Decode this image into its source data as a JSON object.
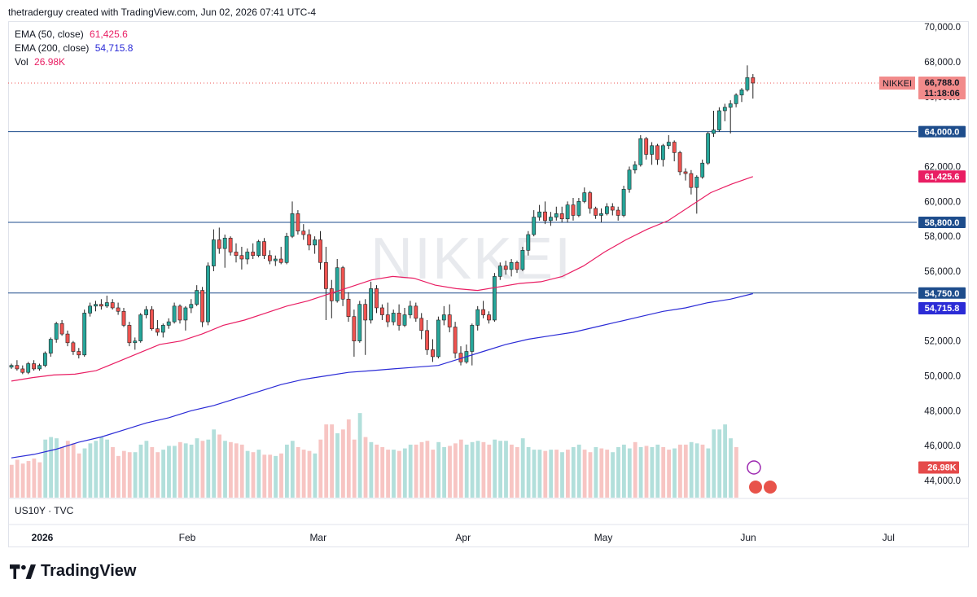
{
  "header": {
    "caption": "thetraderguy created with TradingView.com, Jun 02, 2026 07:41 UTC-4"
  },
  "watermark": "NIKKEI",
  "legend": [
    {
      "label": "EMA (50, close)",
      "value": "61,425.6",
      "color": "#e91e63"
    },
    {
      "label": "EMA (200, close)",
      "value": "54,715.8",
      "color": "#2b2bd6"
    },
    {
      "label": "Vol",
      "value": "26.98K",
      "color": "#e91e63"
    }
  ],
  "sub_series_label": "US10Y · TVC",
  "brand": {
    "name": "TradingView"
  },
  "price_tags": {
    "symbol": "NIKKEI",
    "last_price": "66,788.0",
    "countdown": "11:18:06",
    "ema50": "61,425.6",
    "ema200": "54,715.8",
    "volume": "26.98K"
  },
  "colors": {
    "up": "#26a69a",
    "down": "#ef5350",
    "vol_up": "#b2dfdb",
    "vol_down": "#f7c5c3",
    "ema50": "#e91e63",
    "ema200": "#2b2bd6",
    "hline": "#1e4d8c",
    "last": "#f28b8b"
  },
  "chart_data": {
    "type": "candlestick",
    "symbol": "NIKKEI",
    "interval": "daily",
    "ylim": [
      43500,
      70500
    ],
    "y_ticks": [
      44000,
      46000,
      48000,
      50000,
      52000,
      54000,
      56000,
      58000,
      60000,
      62000,
      64000,
      66000,
      68000,
      70000
    ],
    "y_tick_labels": [
      "44,000.0",
      "46,000.0",
      "48,000.0",
      "50,000.0",
      "52,000.0",
      "54,000.0",
      "56,000.0",
      "58,000.0",
      "60,000.0",
      "62,000.0",
      "64,000.0",
      "66,000.0",
      "68,000.0",
      "70,000.0"
    ],
    "x_labels": [
      {
        "label": "2026",
        "date": "2026-01-01"
      },
      {
        "label": "Feb",
        "date": "2026-02-01"
      },
      {
        "label": "Mar",
        "date": "2026-03-01"
      },
      {
        "label": "Apr",
        "date": "2026-04-01"
      },
      {
        "label": "May",
        "date": "2026-05-01"
      },
      {
        "label": "Jun",
        "date": "2026-06-01"
      },
      {
        "label": "Jul",
        "date": "2026-07-01"
      }
    ],
    "horizontal_lines": [
      {
        "value": 64000,
        "label": "64,000.0"
      },
      {
        "value": 58800,
        "label": "58,800.0"
      },
      {
        "value": 54750,
        "label": "54,750.0"
      }
    ],
    "last_price": 66788,
    "candles": [
      [
        50500,
        50700,
        50400,
        50600
      ],
      [
        50600,
        50900,
        50300,
        50400
      ],
      [
        50400,
        50600,
        50100,
        50200
      ],
      [
        50200,
        50800,
        50100,
        50700
      ],
      [
        50700,
        50900,
        50300,
        50400
      ],
      [
        50400,
        50700,
        50300,
        50600
      ],
      [
        50600,
        51400,
        50500,
        51300
      ],
      [
        51300,
        52200,
        51100,
        52100
      ],
      [
        52100,
        53100,
        51900,
        53000
      ],
      [
        53000,
        53200,
        52300,
        52400
      ],
      [
        52400,
        52600,
        51700,
        51900
      ],
      [
        51900,
        52000,
        51200,
        51400
      ],
      [
        51400,
        51600,
        51000,
        51200
      ],
      [
        51200,
        53800,
        51100,
        53600
      ],
      [
        53600,
        54200,
        53400,
        54000
      ],
      [
        54000,
        54300,
        53700,
        54100
      ],
      [
        54100,
        54400,
        53800,
        54000
      ],
      [
        54000,
        54600,
        53900,
        54200
      ],
      [
        54200,
        54400,
        53800,
        53900
      ],
      [
        53900,
        54200,
        53500,
        53700
      ],
      [
        53700,
        53900,
        52800,
        52900
      ],
      [
        52900,
        53100,
        51700,
        51900
      ],
      [
        51900,
        52200,
        51500,
        52000
      ],
      [
        52000,
        53600,
        51900,
        53500
      ],
      [
        53500,
        54000,
        53300,
        53800
      ],
      [
        53800,
        54000,
        52600,
        52700
      ],
      [
        52700,
        53200,
        52300,
        52500
      ],
      [
        52500,
        53000,
        52200,
        52900
      ],
      [
        52900,
        53300,
        52700,
        53100
      ],
      [
        53100,
        54200,
        53000,
        54000
      ],
      [
        54000,
        54100,
        53000,
        53200
      ],
      [
        53200,
        54000,
        52600,
        53900
      ],
      [
        53900,
        54400,
        53600,
        54100
      ],
      [
        54100,
        55200,
        54000,
        54900
      ],
      [
        54900,
        55100,
        52800,
        53100
      ],
      [
        53100,
        56500,
        52900,
        56300
      ],
      [
        56300,
        58400,
        56000,
        57800
      ],
      [
        57800,
        58500,
        57000,
        57300
      ],
      [
        57300,
        58100,
        56200,
        57900
      ],
      [
        57900,
        58000,
        56900,
        57100
      ],
      [
        57100,
        57600,
        56500,
        56900
      ],
      [
        56900,
        57400,
        56100,
        56700
      ],
      [
        56700,
        57300,
        56400,
        57100
      ],
      [
        57100,
        57600,
        56700,
        56900
      ],
      [
        56900,
        57800,
        56800,
        57700
      ],
      [
        57700,
        57900,
        56700,
        56900
      ],
      [
        56900,
        57200,
        56400,
        56600
      ],
      [
        56600,
        56900,
        56300,
        56700
      ],
      [
        56700,
        57400,
        56400,
        56500
      ],
      [
        56500,
        58200,
        56400,
        58000
      ],
      [
        58000,
        60000,
        57900,
        59300
      ],
      [
        59300,
        59500,
        58100,
        58300
      ],
      [
        58300,
        58700,
        57800,
        58100
      ],
      [
        58100,
        58400,
        57200,
        57500
      ],
      [
        57500,
        58000,
        57000,
        57800
      ],
      [
        57800,
        58300,
        56100,
        56500
      ],
      [
        56500,
        57400,
        53200,
        55000
      ],
      [
        55000,
        55500,
        53300,
        54300
      ],
      [
        54300,
        56700,
        54200,
        56200
      ],
      [
        56200,
        56300,
        54000,
        54400
      ],
      [
        54400,
        54800,
        53100,
        53400
      ],
      [
        53400,
        53800,
        51100,
        52000
      ],
      [
        52000,
        54300,
        51900,
        54100
      ],
      [
        54100,
        54400,
        51200,
        53200
      ],
      [
        53200,
        55400,
        53000,
        55000
      ],
      [
        55000,
        55200,
        53600,
        53900
      ],
      [
        53900,
        54100,
        53200,
        53500
      ],
      [
        53500,
        54200,
        52800,
        53100
      ],
      [
        53100,
        53800,
        52900,
        53600
      ],
      [
        53600,
        54100,
        52600,
        52900
      ],
      [
        52900,
        53900,
        52800,
        53500
      ],
      [
        53500,
        54300,
        53300,
        54000
      ],
      [
        54000,
        54200,
        53100,
        53300
      ],
      [
        53300,
        53600,
        52100,
        52600
      ],
      [
        52600,
        53200,
        51200,
        51500
      ],
      [
        51500,
        52100,
        50800,
        51100
      ],
      [
        51100,
        53400,
        51000,
        53200
      ],
      [
        53200,
        54000,
        52900,
        53500
      ],
      [
        53500,
        54100,
        52500,
        52800
      ],
      [
        52800,
        53100,
        51000,
        51300
      ],
      [
        51300,
        51700,
        50600,
        50800
      ],
      [
        50800,
        51800,
        50700,
        51400
      ],
      [
        51400,
        53000,
        50600,
        52900
      ],
      [
        52900,
        54000,
        52600,
        53800
      ],
      [
        53800,
        54300,
        53300,
        53500
      ],
      [
        53500,
        53700,
        53000,
        53200
      ],
      [
        53200,
        55900,
        53100,
        55700
      ],
      [
        55700,
        56500,
        55500,
        56300
      ],
      [
        56300,
        56600,
        55800,
        56100
      ],
      [
        56100,
        56700,
        55700,
        56500
      ],
      [
        56500,
        56600,
        55900,
        56100
      ],
      [
        56100,
        57400,
        56000,
        57200
      ],
      [
        57200,
        58300,
        56900,
        58100
      ],
      [
        58100,
        59500,
        58000,
        59100
      ],
      [
        59100,
        59800,
        58900,
        59400
      ],
      [
        59400,
        60000,
        58700,
        58900
      ],
      [
        58900,
        59400,
        58600,
        59100
      ],
      [
        59100,
        59700,
        58900,
        59300
      ],
      [
        59300,
        59700,
        58800,
        59000
      ],
      [
        59000,
        60000,
        58800,
        59800
      ],
      [
        59800,
        60200,
        58900,
        59200
      ],
      [
        59200,
        60200,
        59100,
        60000
      ],
      [
        60000,
        60800,
        59900,
        60500
      ],
      [
        60500,
        60600,
        59300,
        59600
      ],
      [
        59600,
        59700,
        59000,
        59200
      ],
      [
        59200,
        59600,
        58800,
        59300
      ],
      [
        59300,
        59900,
        59200,
        59700
      ],
      [
        59700,
        59900,
        59200,
        59500
      ],
      [
        59500,
        59700,
        58900,
        59200
      ],
      [
        59200,
        60900,
        59100,
        60700
      ],
      [
        60700,
        62000,
        60500,
        61800
      ],
      [
        61800,
        62300,
        61600,
        62100
      ],
      [
        62100,
        63800,
        62000,
        63600
      ],
      [
        63600,
        63700,
        62400,
        62700
      ],
      [
        62700,
        63400,
        62100,
        63200
      ],
      [
        63200,
        63300,
        62100,
        62400
      ],
      [
        62400,
        63300,
        62000,
        63200
      ],
      [
        63200,
        63800,
        63000,
        63400
      ],
      [
        63400,
        63500,
        62300,
        62800
      ],
      [
        62800,
        62900,
        61500,
        61700
      ],
      [
        61700,
        61900,
        61200,
        61600
      ],
      [
        61600,
        61800,
        60400,
        60800
      ],
      [
        60800,
        61500,
        59300,
        61400
      ],
      [
        61400,
        62400,
        61300,
        62200
      ],
      [
        62200,
        64000,
        62100,
        63900
      ],
      [
        63900,
        65200,
        63700,
        64100
      ],
      [
        64100,
        65400,
        64000,
        65200
      ],
      [
        65200,
        65600,
        64600,
        65400
      ],
      [
        65400,
        65800,
        63900,
        65600
      ],
      [
        65600,
        66200,
        65400,
        66100
      ],
      [
        66100,
        66500,
        65700,
        66400
      ],
      [
        66400,
        67800,
        66300,
        67100
      ],
      [
        67100,
        67300,
        65900,
        66788
      ]
    ],
    "ema50": [
      49700,
      49900,
      50050,
      50100,
      50300,
      50800,
      51300,
      51800,
      52000,
      52400,
      52900,
      53200,
      53600,
      54000,
      54300,
      54700,
      55100,
      55500,
      55700,
      55600,
      55200,
      55000,
      54900,
      55100,
      55300,
      55400,
      55700,
      56300,
      57100,
      57800,
      58400,
      58900,
      59700,
      60500,
      61000,
      61425.6
    ],
    "ema200": [
      45300,
      45500,
      45800,
      46200,
      46500,
      46900,
      47300,
      47600,
      48000,
      48300,
      48700,
      49100,
      49500,
      49800,
      50000,
      50200,
      50300,
      50400,
      50500,
      50600,
      51000,
      51400,
      51800,
      52100,
      52300,
      52500,
      52800,
      53100,
      53400,
      53700,
      53900,
      54200,
      54400,
      54715.8
    ],
    "volume": [
      [
        26,
        0
      ],
      [
        30,
        0
      ],
      [
        27,
        0
      ],
      [
        29,
        0
      ],
      [
        31,
        0
      ],
      [
        28,
        0
      ],
      [
        46,
        1
      ],
      [
        48,
        1
      ],
      [
        47,
        1
      ],
      [
        40,
        0
      ],
      [
        45,
        0
      ],
      [
        43,
        0
      ],
      [
        35,
        0
      ],
      [
        39,
        1
      ],
      [
        43,
        1
      ],
      [
        45,
        1
      ],
      [
        48,
        1
      ],
      [
        46,
        1
      ],
      [
        40,
        0
      ],
      [
        33,
        0
      ],
      [
        37,
        0
      ],
      [
        36,
        0
      ],
      [
        36,
        1
      ],
      [
        42,
        1
      ],
      [
        45,
        1
      ],
      [
        40,
        0
      ],
      [
        36,
        0
      ],
      [
        38,
        1
      ],
      [
        41,
        1
      ],
      [
        41,
        1
      ],
      [
        44,
        0
      ],
      [
        43,
        1
      ],
      [
        42,
        1
      ],
      [
        47,
        1
      ],
      [
        45,
        0
      ],
      [
        46,
        1
      ],
      [
        54,
        1
      ],
      [
        50,
        0
      ],
      [
        45,
        1
      ],
      [
        44,
        0
      ],
      [
        43,
        0
      ],
      [
        42,
        0
      ],
      [
        37,
        1
      ],
      [
        36,
        0
      ],
      [
        38,
        1
      ],
      [
        34,
        0
      ],
      [
        34,
        0
      ],
      [
        33,
        1
      ],
      [
        35,
        0
      ],
      [
        42,
        1
      ],
      [
        45,
        1
      ],
      [
        40,
        0
      ],
      [
        38,
        0
      ],
      [
        37,
        0
      ],
      [
        35,
        1
      ],
      [
        46,
        0
      ],
      [
        58,
        0
      ],
      [
        58,
        0
      ],
      [
        51,
        1
      ],
      [
        54,
        0
      ],
      [
        62,
        0
      ],
      [
        46,
        0
      ],
      [
        67,
        1
      ],
      [
        48,
        0
      ],
      [
        44,
        1
      ],
      [
        42,
        0
      ],
      [
        40,
        0
      ],
      [
        38,
        0
      ],
      [
        38,
        1
      ],
      [
        37,
        0
      ],
      [
        39,
        1
      ],
      [
        42,
        1
      ],
      [
        42,
        0
      ],
      [
        44,
        0
      ],
      [
        45,
        0
      ],
      [
        38,
        0
      ],
      [
        44,
        1
      ],
      [
        40,
        1
      ],
      [
        41,
        0
      ],
      [
        43,
        0
      ],
      [
        46,
        0
      ],
      [
        42,
        1
      ],
      [
        44,
        1
      ],
      [
        45,
        1
      ],
      [
        44,
        0
      ],
      [
        42,
        0
      ],
      [
        46,
        1
      ],
      [
        45,
        1
      ],
      [
        45,
        1
      ],
      [
        42,
        0
      ],
      [
        40,
        0
      ],
      [
        47,
        1
      ],
      [
        40,
        1
      ],
      [
        38,
        1
      ],
      [
        38,
        1
      ],
      [
        37,
        0
      ],
      [
        38,
        1
      ],
      [
        38,
        0
      ],
      [
        36,
        1
      ],
      [
        38,
        0
      ],
      [
        40,
        1
      ],
      [
        42,
        1
      ],
      [
        38,
        0
      ],
      [
        36,
        0
      ],
      [
        40,
        1
      ],
      [
        39,
        0
      ],
      [
        38,
        0
      ],
      [
        36,
        1
      ],
      [
        40,
        1
      ],
      [
        42,
        1
      ],
      [
        39,
        1
      ],
      [
        44,
        0
      ],
      [
        40,
        1
      ],
      [
        41,
        0
      ],
      [
        40,
        1
      ],
      [
        42,
        1
      ],
      [
        40,
        0
      ],
      [
        38,
        0
      ],
      [
        39,
        1
      ],
      [
        42,
        0
      ],
      [
        42,
        0
      ],
      [
        44,
        1
      ],
      [
        43,
        1
      ],
      [
        42,
        0
      ],
      [
        39,
        1
      ],
      [
        54,
        1
      ],
      [
        54,
        1
      ],
      [
        58,
        1
      ],
      [
        47,
        1
      ],
      [
        40,
        0
      ]
    ]
  }
}
